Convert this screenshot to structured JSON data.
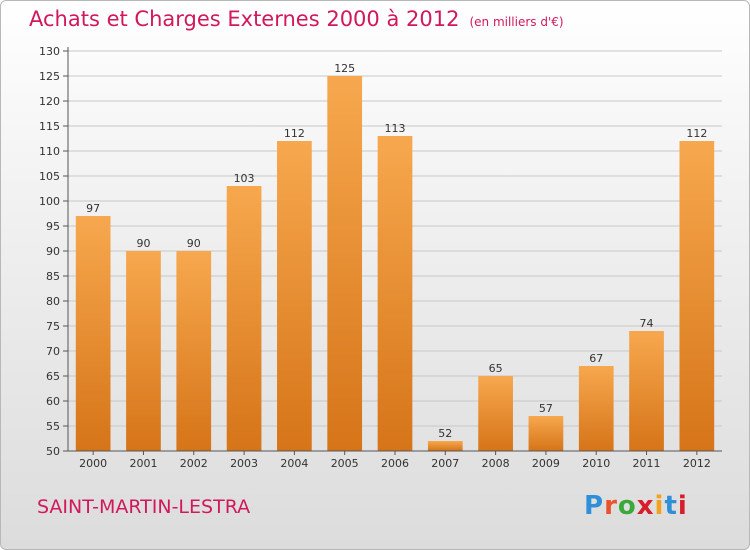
{
  "title": "Achats et Charges Externes 2000 à 2012",
  "unit": "(en milliers d'€)",
  "commune": "SAINT-MARTIN-LESTRA",
  "logo": {
    "text": "Proxiti",
    "letter_colors": [
      "#2f8fd8",
      "#e8532a",
      "#3aa83a",
      "#d81e2a",
      "#f2a21b",
      "#2f8fd8",
      "#d81e2a"
    ]
  },
  "colors": {
    "bar_light": "#f7a84e",
    "bar_dark": "#d67418",
    "title": "#d2185c"
  },
  "chart_data": {
    "type": "bar",
    "categories": [
      "2000",
      "2001",
      "2002",
      "2003",
      "2004",
      "2005",
      "2006",
      "2007",
      "2008",
      "2009",
      "2010",
      "2011",
      "2012"
    ],
    "values": [
      97,
      90,
      90,
      103,
      112,
      125,
      113,
      52,
      65,
      57,
      67,
      74,
      112
    ],
    "data_labels": [
      "97",
      "90",
      "90",
      "103",
      "112",
      "125",
      "113",
      "52",
      "65",
      "57",
      "67",
      "74",
      "112"
    ],
    "y_ticks": [
      "50",
      "55",
      "60",
      "65",
      "70",
      "75",
      "80",
      "85",
      "90",
      "95",
      "100",
      "105",
      "110",
      "115",
      "120",
      "125",
      "130"
    ],
    "ylim": [
      50,
      130
    ],
    "grid": true
  }
}
